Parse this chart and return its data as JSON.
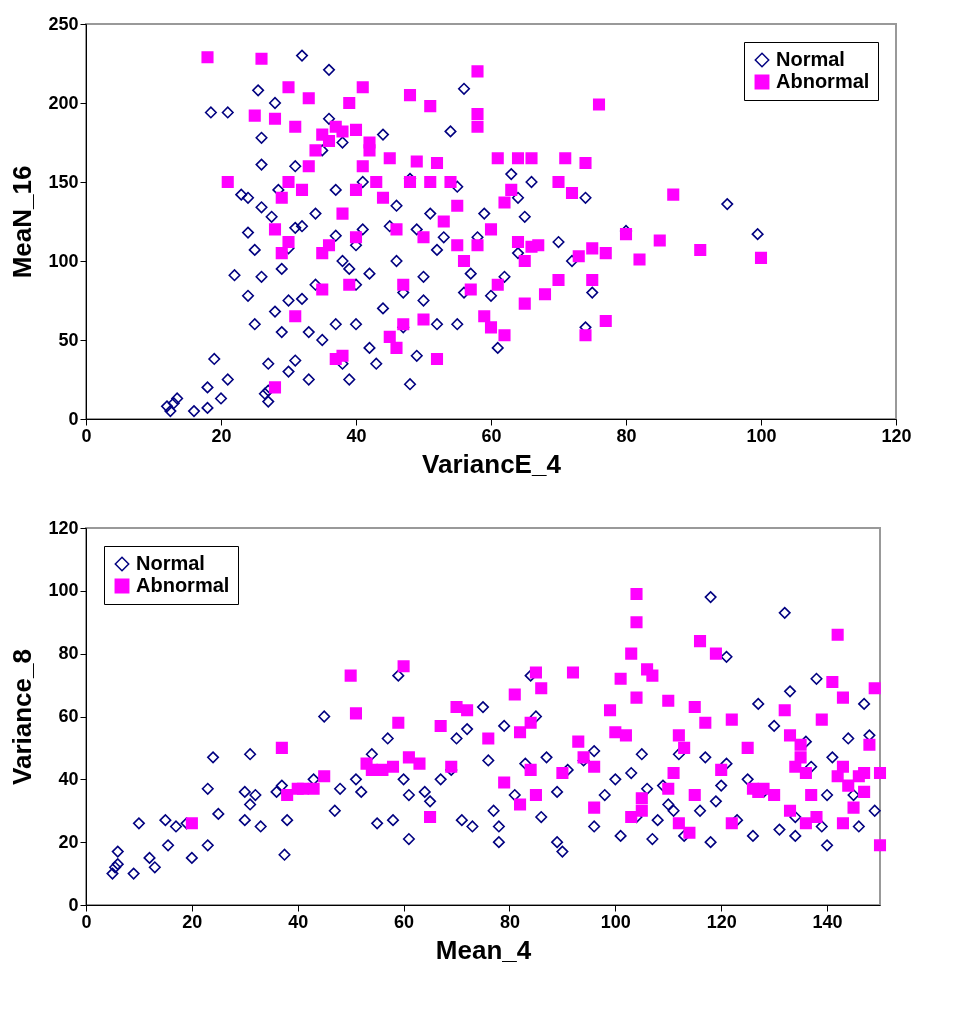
{
  "chart_data": [
    {
      "type": "scatter",
      "xlabel": "VariancE_4",
      "ylabel": "MeaN_16",
      "xlim": [
        0,
        120
      ],
      "xticks": [
        0,
        20,
        40,
        60,
        80,
        100,
        120
      ],
      "ylim": [
        0,
        250
      ],
      "yticks": [
        0,
        50,
        100,
        150,
        200,
        250
      ],
      "grid": false,
      "legend": "top right",
      "series": [
        {
          "name": "Normal",
          "color": "#000080",
          "marker": "diamond",
          "x": [
            12,
            12.5,
            13,
            13.5,
            16,
            18,
            18,
            19,
            20,
            21,
            22,
            18.5,
            21,
            23,
            24,
            24,
            24,
            25,
            25,
            25.5,
            26,
            26,
            26,
            26,
            26.5,
            27,
            27,
            27,
            27.5,
            28,
            28,
            28.5,
            29,
            29,
            30,
            30,
            30,
            31,
            31,
            31,
            32,
            32,
            32,
            33,
            33,
            34,
            34,
            35,
            35,
            36,
            36,
            37,
            37,
            37,
            38,
            38,
            38,
            39,
            39,
            40,
            40,
            40,
            41,
            41,
            42,
            42,
            43,
            44,
            44,
            45,
            46,
            46,
            47,
            47,
            48,
            48,
            49,
            49,
            50,
            50,
            51,
            52,
            52,
            53,
            54,
            55,
            56,
            56,
            57,
            58,
            59,
            60,
            61,
            62,
            64,
            64,
            65,
            66,
            70,
            72,
            74,
            74,
            75,
            80,
            95,
            99.5,
            63,
            55
          ],
          "values": [
            8,
            5,
            10,
            13,
            5,
            20,
            7,
            38,
            13,
            25,
            91,
            194,
            194,
            142,
            140,
            118,
            78,
            60,
            107,
            208,
            178,
            161,
            134,
            90,
            16,
            35,
            11,
            18,
            128,
            200,
            68,
            145,
            55,
            95,
            75,
            108,
            30,
            37,
            121,
            160,
            230,
            122,
            76,
            55,
            25,
            85,
            130,
            170,
            50,
            221,
            190,
            145,
            116,
            60,
            100,
            35,
            175,
            25,
            95,
            110,
            85,
            60,
            120,
            150,
            45,
            92,
            35,
            70,
            180,
            122,
            100,
            135,
            80,
            58,
            152,
            22,
            40,
            120,
            90,
            75,
            130,
            60,
            107,
            115,
            182,
            60,
            209,
            80,
            92,
            115,
            130,
            78,
            45,
            90,
            140,
            105,
            128,
            150,
            112,
            100,
            140,
            58,
            80,
            119,
            136,
            117,
            155,
            147
          ]
        },
        {
          "name": "Abnormal",
          "color": "#ff00ff",
          "marker": "square",
          "x": [
            18,
            26,
            25,
            30,
            28,
            31,
            33,
            21,
            29,
            30,
            32,
            33,
            34,
            35,
            36,
            37,
            38,
            39,
            40,
            41,
            42,
            28,
            29,
            30,
            31,
            28,
            35,
            35,
            36,
            37,
            38,
            38,
            39,
            40,
            40,
            41,
            42,
            43,
            44,
            45,
            45,
            46,
            46,
            47,
            47,
            48,
            48,
            49,
            50,
            50,
            51,
            51,
            52,
            52,
            53,
            54,
            55,
            55,
            56,
            57,
            58,
            58,
            58,
            58,
            59,
            60,
            60,
            61,
            61,
            62,
            62,
            63,
            64,
            64,
            65,
            65,
            66,
            66,
            67,
            68,
            70,
            70,
            71,
            72,
            73,
            74,
            74,
            75,
            75,
            76,
            77,
            77,
            80,
            82,
            85,
            87,
            91,
            100
          ],
          "values": [
            229,
            228,
            192,
            210,
            190,
            185,
            203,
            150,
            140,
            150,
            145,
            160,
            170,
            180,
            176,
            185,
            182,
            200,
            183,
            210,
            175,
            120,
            105,
            112,
            65,
            20,
            105,
            82,
            110,
            38,
            40,
            130,
            85,
            115,
            145,
            160,
            170,
            150,
            140,
            165,
            52,
            120,
            45,
            60,
            85,
            150,
            205,
            163,
            115,
            63,
            198,
            150,
            38,
            162,
            125,
            150,
            110,
            135,
            100,
            82,
            220,
            193,
            185,
            110,
            65,
            120,
            58,
            165,
            85,
            137,
            53,
            145,
            165,
            112,
            100,
            73,
            109,
            165,
            110,
            79,
            150,
            88,
            165,
            143,
            103,
            162,
            53,
            108,
            88,
            199,
            105,
            62,
            117,
            101,
            113,
            142,
            107,
            102
          ]
        }
      ]
    },
    {
      "type": "scatter",
      "xlabel": "Mean_4",
      "ylabel": "Variance_8",
      "xlim": [
        0,
        150
      ],
      "xticks": [
        0,
        20,
        40,
        60,
        80,
        100,
        120,
        140
      ],
      "ylim": [
        0,
        120
      ],
      "yticks": [
        0,
        20,
        40,
        60,
        80,
        100,
        120
      ],
      "grid": false,
      "legend": "top left",
      "series": [
        {
          "name": "Normal",
          "color": "#000080",
          "marker": "diamond",
          "x": [
            5,
            5.5,
            6,
            6,
            9,
            10,
            12,
            13,
            15,
            15.5,
            17,
            19,
            20,
            23,
            23,
            24,
            25,
            30,
            30,
            31,
            31,
            32,
            33,
            36,
            37,
            37.5,
            38,
            43,
            45,
            47,
            48,
            51,
            52,
            54,
            55,
            57,
            58,
            59,
            60,
            61,
            61,
            64,
            65,
            67,
            69,
            70,
            71,
            72,
            73,
            75,
            76,
            77,
            78,
            78,
            79,
            81,
            83,
            84,
            85,
            86,
            87,
            89,
            89,
            90,
            91,
            94,
            96,
            96,
            98,
            100,
            101,
            103,
            104,
            105,
            106,
            107,
            108,
            109,
            110,
            111,
            112,
            113,
            116,
            117,
            118,
            118,
            119,
            120,
            121,
            121,
            123,
            125,
            126,
            127,
            128,
            130,
            131,
            132,
            133,
            134,
            134,
            136,
            137,
            138,
            139,
            140,
            140,
            141,
            144,
            145,
            146,
            147,
            148,
            149
          ],
          "values": [
            10,
            12,
            17,
            13,
            10,
            26,
            15,
            12,
            27,
            19,
            25,
            26,
            15,
            19,
            37,
            47,
            29,
            36,
            27,
            48,
            32,
            35,
            25,
            36,
            38,
            16,
            27,
            40,
            60,
            30,
            37,
            40,
            36,
            48,
            26,
            53,
            27,
            73,
            40,
            35,
            21,
            36,
            33,
            40,
            43,
            53,
            27,
            56,
            25,
            63,
            46,
            30,
            20,
            25,
            57,
            35,
            45,
            73,
            60,
            28,
            47,
            36,
            20,
            17,
            43,
            46,
            25,
            49,
            35,
            40,
            22,
            42,
            28,
            48,
            37,
            21,
            27,
            38,
            32,
            30,
            48,
            22,
            30,
            47,
            98,
            20,
            33,
            38,
            45,
            79,
            27,
            40,
            22,
            64,
            36,
            57,
            24,
            93,
            68,
            28,
            22,
            52,
            44,
            72,
            25,
            19,
            35,
            47,
            53,
            35,
            25,
            64,
            54,
            30
          ]
        },
        {
          "name": "Abnormal",
          "color": "#ff00ff",
          "marker": "square",
          "x": [
            20,
            37,
            38,
            40,
            41,
            43,
            45,
            50,
            51,
            53,
            54,
            56,
            58,
            59,
            60,
            61,
            63,
            65,
            67,
            69,
            70,
            72,
            76,
            79,
            81,
            82,
            82,
            84,
            84,
            85,
            85,
            86,
            90,
            92,
            93,
            94,
            96,
            96,
            99,
            100,
            101,
            102,
            103,
            103,
            104,
            104,
            104,
            105,
            105,
            106,
            107,
            110,
            110,
            111,
            112,
            112,
            113,
            114,
            115,
            115,
            116,
            117,
            119,
            120,
            122,
            122,
            125,
            126,
            127,
            128,
            130,
            132,
            133,
            133,
            134,
            135,
            135,
            136,
            136,
            137,
            138,
            139,
            141,
            142,
            142,
            143,
            143,
            143,
            144,
            145,
            146,
            147,
            147,
            148,
            149,
            150,
            150
          ],
          "values": [
            26,
            50,
            35,
            37,
            37,
            37,
            41,
            73,
            61,
            45,
            43,
            43,
            44,
            58,
            76,
            47,
            45,
            28,
            57,
            44,
            63,
            62,
            53,
            39,
            67,
            32,
            55,
            58,
            43,
            74,
            35,
            69,
            42,
            74,
            52,
            47,
            31,
            44,
            62,
            55,
            72,
            54,
            80,
            28,
            99,
            90,
            66,
            34,
            30,
            75,
            73,
            65,
            37,
            42,
            54,
            26,
            50,
            23,
            35,
            63,
            84,
            58,
            80,
            43,
            26,
            59,
            50,
            37,
            36,
            37,
            35,
            62,
            54,
            30,
            44,
            51,
            47,
            42,
            26,
            35,
            28,
            59,
            71,
            41,
            86,
            44,
            66,
            26,
            38,
            31,
            41,
            36,
            42,
            51,
            69,
            42,
            19
          ]
        }
      ]
    }
  ]
}
